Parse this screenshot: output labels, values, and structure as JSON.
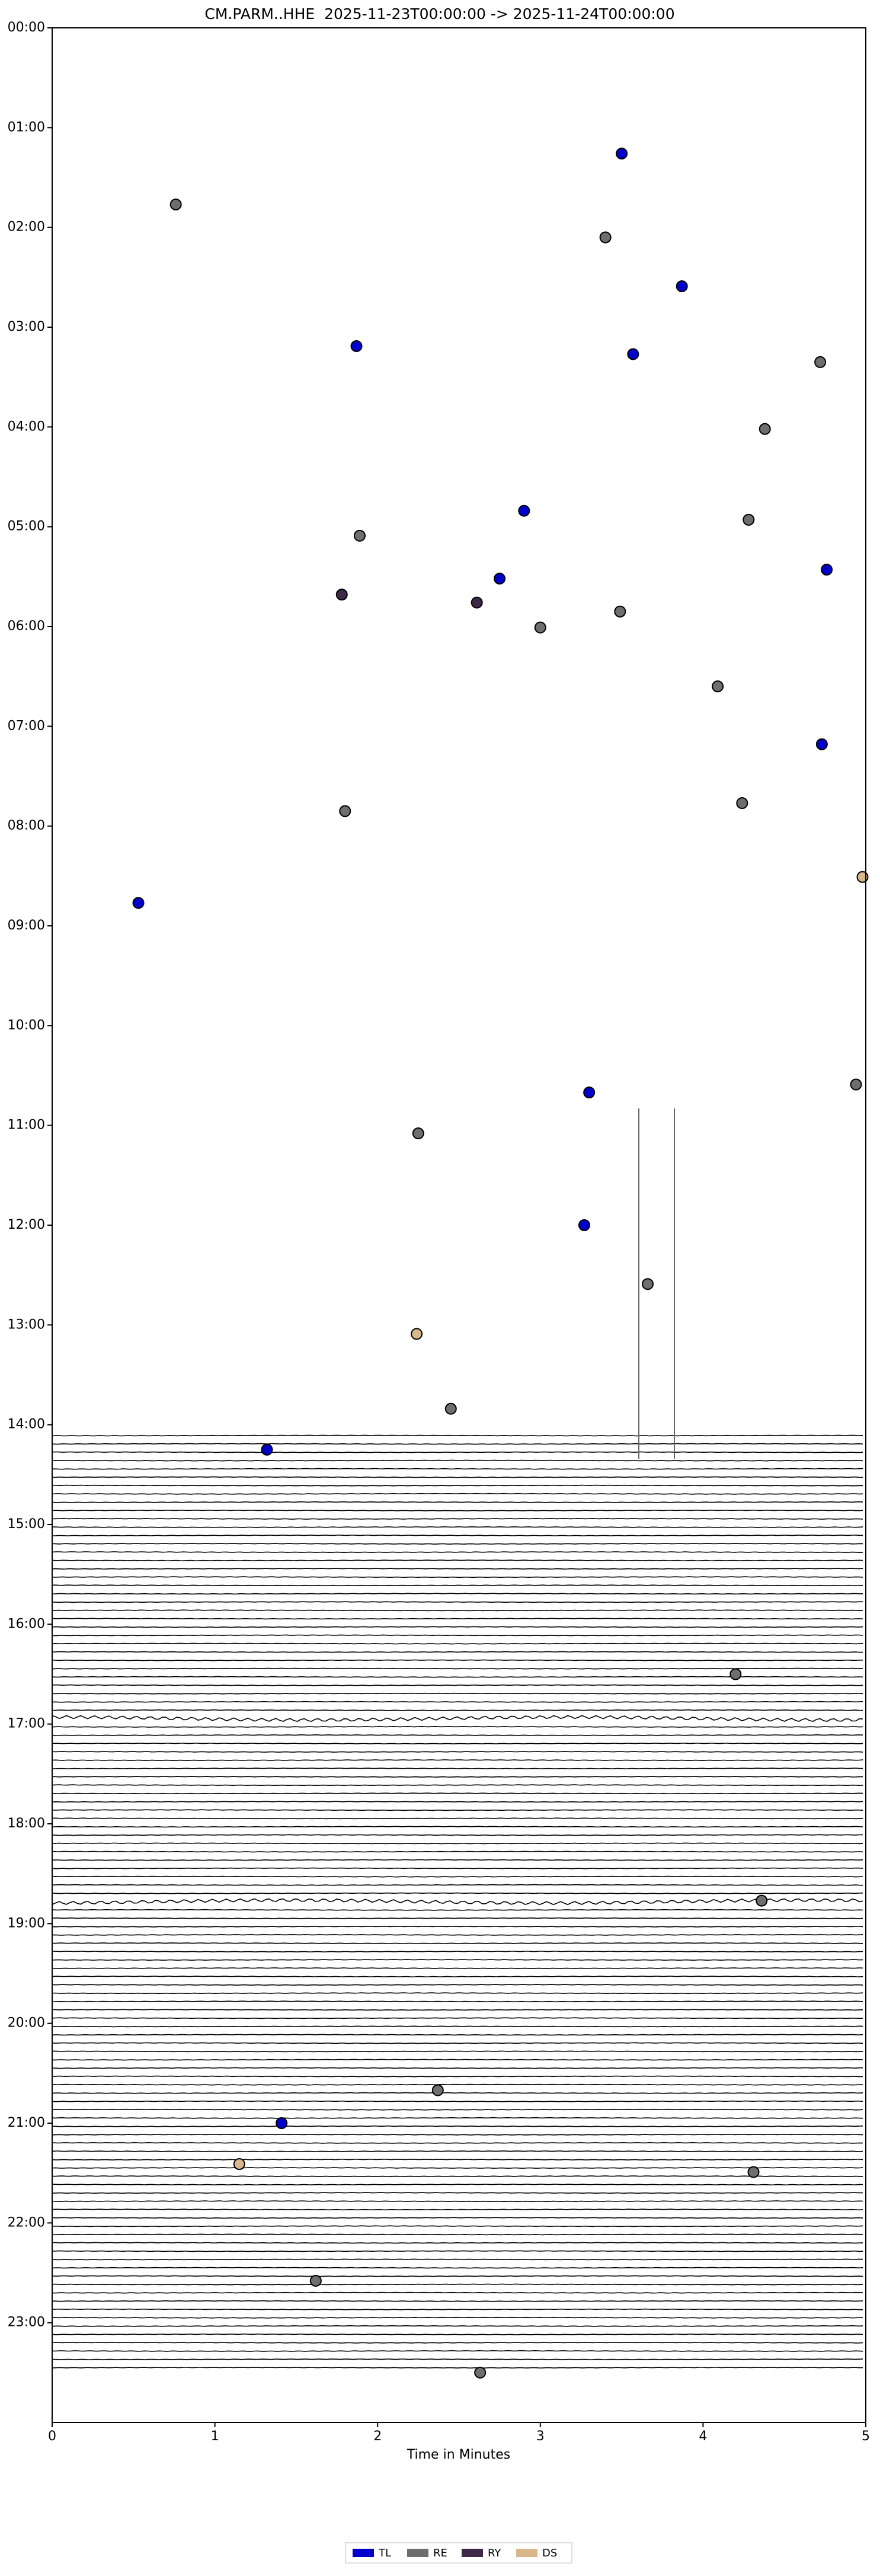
{
  "chart_data": {
    "type": "scatter",
    "title": "CM.PARM..HHE  2025-11-23T00:00:00 -> 2025-11-24T00:00:00",
    "x_label": "Time in Minutes",
    "xlim": [
      0,
      5
    ],
    "xticks": [
      0,
      1,
      2,
      3,
      4,
      5
    ],
    "ylim": [
      24,
      0
    ],
    "yticks": [
      {
        "value": 0,
        "label": "00:00"
      },
      {
        "value": 1,
        "label": "01:00"
      },
      {
        "value": 2,
        "label": "02:00"
      },
      {
        "value": 3,
        "label": "03:00"
      },
      {
        "value": 4,
        "label": "04:00"
      },
      {
        "value": 5,
        "label": "05:00"
      },
      {
        "value": 6,
        "label": "06:00"
      },
      {
        "value": 7,
        "label": "07:00"
      },
      {
        "value": 8,
        "label": "08:00"
      },
      {
        "value": 9,
        "label": "09:00"
      },
      {
        "value": 10,
        "label": "10:00"
      },
      {
        "value": 11,
        "label": "11:00"
      },
      {
        "value": 12,
        "label": "12:00"
      },
      {
        "value": 13,
        "label": "13:00"
      },
      {
        "value": 14,
        "label": "14:00"
      },
      {
        "value": 15,
        "label": "15:00"
      },
      {
        "value": 16,
        "label": "16:00"
      },
      {
        "value": 17,
        "label": "17:00"
      },
      {
        "value": 18,
        "label": "18:00"
      },
      {
        "value": 19,
        "label": "19:00"
      },
      {
        "value": 20,
        "label": "20:00"
      },
      {
        "value": 21,
        "label": "21:00"
      },
      {
        "value": 22,
        "label": "22:00"
      },
      {
        "value": 23,
        "label": "23:00"
      }
    ],
    "legend": "bottom",
    "series": [
      {
        "name": "TL",
        "color": "#0000cc",
        "x": [
          3.5,
          3.87,
          1.87,
          3.57,
          2.9,
          4.76,
          2.75,
          4.73,
          0.53,
          3.3,
          3.27,
          1.32,
          1.41
        ],
        "values": [
          1.26,
          2.59,
          3.19,
          3.27,
          4.84,
          5.43,
          5.52,
          7.18,
          8.77,
          10.67,
          12.0,
          14.25,
          21.0
        ]
      },
      {
        "name": "RE",
        "color": "#6e6e6e",
        "x": [
          0.76,
          3.4,
          4.72,
          4.38,
          4.28,
          1.89,
          3.49,
          3.0,
          4.09,
          4.24,
          1.8,
          4.94,
          2.25,
          3.66,
          2.45,
          4.2,
          4.36,
          2.37,
          4.31,
          1.62,
          2.63
        ],
        "values": [
          1.77,
          2.1,
          3.35,
          4.02,
          4.93,
          5.09,
          5.85,
          6.01,
          6.6,
          7.77,
          7.85,
          10.59,
          11.08,
          12.59,
          13.84,
          16.5,
          18.77,
          20.67,
          21.49,
          22.58,
          23.5
        ]
      },
      {
        "name": "RY",
        "color": "#3e2a48",
        "x": [
          1.78,
          2.61
        ],
        "values": [
          5.68,
          5.76
        ]
      },
      {
        "name": "DS",
        "color": "#d8b88a",
        "x": [
          4.98,
          2.24,
          1.15
        ],
        "values": [
          8.51,
          13.09,
          21.41
        ]
      }
    ]
  }
}
